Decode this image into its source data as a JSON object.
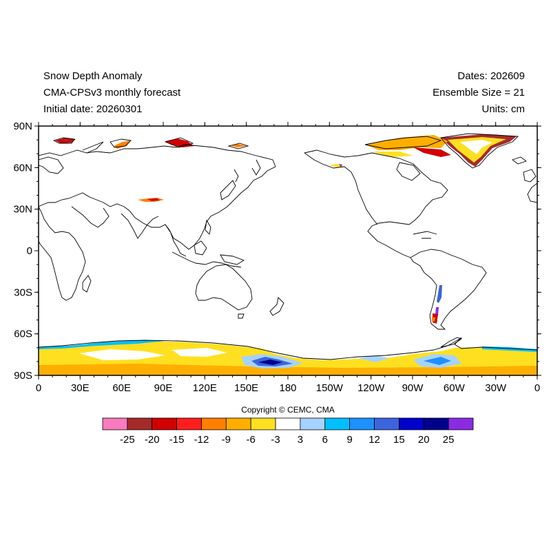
{
  "header": {
    "title": "Snow Depth Anomaly",
    "model": "CMA-CPSv3 monthly forecast",
    "initial_date": "Initial date: 20260301",
    "dates": "Dates: 202609",
    "ensemble": "Ensemble Size = 21",
    "units": "Units: cm"
  },
  "map": {
    "projection": "cylindrical equidistant, centered 180",
    "lat_labels": [
      "90N",
      "60N",
      "30N",
      "0",
      "30S",
      "60S",
      "90S"
    ],
    "lon_labels": [
      "0",
      "30E",
      "60E",
      "90E",
      "120E",
      "150E",
      "180",
      "150W",
      "120W",
      "90W",
      "60W",
      "30W",
      "0"
    ]
  },
  "copyright": "Copyright © CEMC, CMA",
  "colorbar": {
    "colors": [
      "#f87ac0",
      "#a52a2a",
      "#d20000",
      "#ff1e1e",
      "#ff7f00",
      "#ffae00",
      "#ffe020",
      "#ffffff",
      "#a6d2ff",
      "#00bfff",
      "#1e90ff",
      "#3c64dc",
      "#0000cd",
      "#00008b",
      "#8a2be2"
    ],
    "labels": [
      "-25",
      "-20",
      "-15",
      "-12",
      "-9",
      "-6",
      "-3",
      "3",
      "6",
      "9",
      "12",
      "15",
      "20",
      "25"
    ]
  }
}
